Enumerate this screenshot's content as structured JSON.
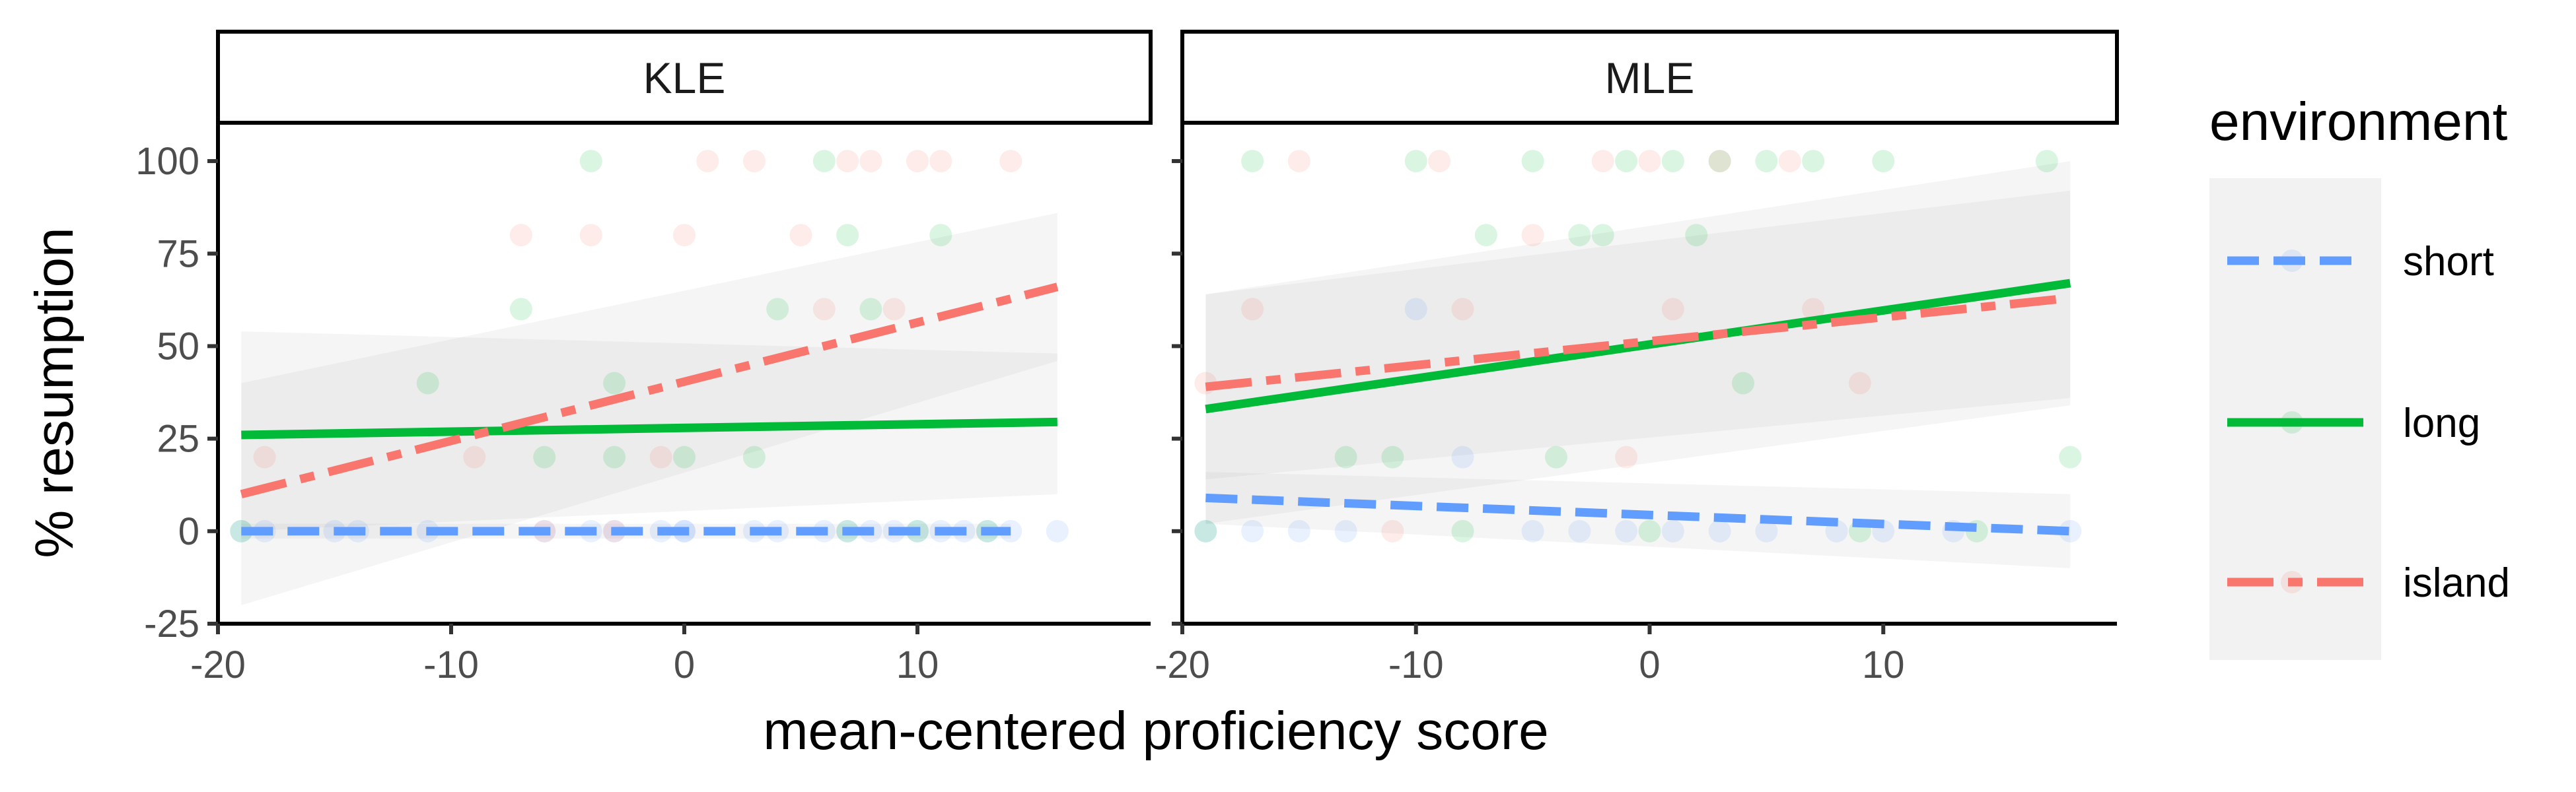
{
  "chart_data": {
    "type": "scatter",
    "title": "",
    "xlabel": "mean-centered proficiency score",
    "ylabel": "% resumption",
    "xlim": [
      -20,
      20
    ],
    "ylim": [
      -25,
      110
    ],
    "xticks": [
      -20,
      -10,
      0,
      10
    ],
    "xtick_labels": [
      "-20",
      "-10",
      "0",
      "10"
    ],
    "yticks": [
      -25,
      0,
      25,
      50,
      75,
      100
    ],
    "ytick_labels": [
      "-25",
      "0",
      "25",
      "50",
      "75",
      "100"
    ],
    "grid": false,
    "legend": {
      "title": "environment",
      "position": "right",
      "entries": [
        {
          "label": "short",
          "color": "#619CFF",
          "linetype": "dashed"
        },
        {
          "label": "long",
          "color": "#00BA38",
          "linetype": "solid"
        },
        {
          "label": "island",
          "color": "#F8766D",
          "linetype": "dotdash"
        }
      ]
    },
    "panels": [
      {
        "label": "KLE",
        "fits": [
          {
            "series": "short",
            "x": [
              -19,
              14
            ],
            "y": [
              0,
              0
            ],
            "band": [
              [
                -2,
                2
              ],
              [
                -2,
                2
              ]
            ]
          },
          {
            "series": "long",
            "x": [
              -19,
              16
            ],
            "y": [
              26,
              29.5
            ],
            "band": [
              [
                0,
                54
              ],
              [
                10,
                48
              ]
            ]
          },
          {
            "series": "island",
            "x": [
              -19,
              16
            ],
            "y": [
              10,
              66
            ],
            "band": [
              [
                -20,
                40
              ],
              [
                46,
                86
              ]
            ]
          }
        ],
        "points": [
          {
            "series": "short",
            "x": [
              -19,
              -18,
              -15,
              -14,
              -11,
              -6,
              -4,
              -3,
              -1,
              0,
              0,
              3,
              4,
              6,
              7,
              8,
              9,
              10,
              11,
              12,
              13,
              14,
              16
            ],
            "y": [
              0,
              0,
              0,
              0,
              0,
              0,
              0,
              0,
              0,
              0,
              0,
              0,
              0,
              0,
              0,
              0,
              0,
              0,
              0,
              0,
              0,
              0,
              0
            ]
          },
          {
            "series": "long",
            "x": [
              -19,
              -11,
              -7,
              -6,
              -4,
              -3,
              -3,
              0,
              3,
              4,
              6,
              7,
              7,
              8,
              10,
              11,
              13
            ],
            "y": [
              0,
              40,
              60,
              20,
              100,
              20,
              40,
              20,
              20,
              60,
              100,
              80,
              0,
              60,
              0,
              80,
              0
            ]
          },
          {
            "series": "island",
            "x": [
              -18,
              -9,
              -7,
              -6,
              -4,
              -3,
              -1,
              0,
              1,
              3,
              5,
              6,
              7,
              8,
              9,
              10,
              11,
              14
            ],
            "y": [
              20,
              20,
              80,
              0,
              80,
              0,
              20,
              80,
              100,
              100,
              80,
              60,
              100,
              100,
              60,
              100,
              100,
              100
            ]
          }
        ]
      },
      {
        "label": "MLE",
        "fits": [
          {
            "series": "short",
            "x": [
              -19,
              18
            ],
            "y": [
              9,
              0
            ],
            "band": [
              [
                2,
                16
              ],
              [
                -10,
                10
              ]
            ]
          },
          {
            "series": "long",
            "x": [
              -19,
              18
            ],
            "y": [
              33,
              67
            ],
            "band": [
              [
                2,
                64
              ],
              [
                34,
                100
              ]
            ]
          },
          {
            "series": "island",
            "x": [
              -19,
              18
            ],
            "y": [
              39,
              63
            ],
            "band": [
              [
                14,
                64
              ],
              [
                36,
                92
              ]
            ]
          }
        ],
        "points": [
          {
            "series": "short",
            "x": [
              -19,
              -17,
              -15,
              -13,
              -10,
              -8,
              -5,
              -3,
              -1,
              1,
              3,
              5,
              8,
              10,
              13,
              18
            ],
            "y": [
              0,
              0,
              0,
              0,
              60,
              20,
              0,
              0,
              0,
              0,
              0,
              0,
              0,
              0,
              0,
              0
            ]
          },
          {
            "series": "long",
            "x": [
              -19,
              -17,
              -13,
              -11,
              -10,
              -8,
              -7,
              -5,
              -4,
              -3,
              -2,
              -1,
              0,
              1,
              2,
              3,
              4,
              5,
              7,
              9,
              10,
              14,
              17,
              18
            ],
            "y": [
              0,
              100,
              20,
              20,
              100,
              0,
              80,
              100,
              20,
              80,
              80,
              100,
              0,
              100,
              80,
              100,
              40,
              100,
              100,
              0,
              100,
              0,
              100,
              20
            ]
          },
          {
            "series": "island",
            "x": [
              -19,
              -17,
              -15,
              -11,
              -9,
              -8,
              -5,
              -2,
              -1,
              0,
              1,
              3,
              6,
              7,
              9
            ],
            "y": [
              40,
              60,
              100,
              0,
              100,
              60,
              80,
              100,
              20,
              100,
              60,
              100,
              100,
              60,
              40
            ]
          }
        ]
      }
    ]
  }
}
